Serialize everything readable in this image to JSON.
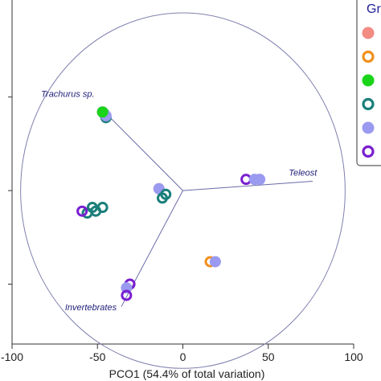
{
  "chart_data": {
    "type": "scatter",
    "title": "",
    "xlabel": "PCO1 (54.4% of total variation)",
    "ylabel": "",
    "xlim": [
      -100,
      100
    ],
    "ylim": [
      -82,
      104
    ],
    "xticks": [
      -100,
      -50,
      0,
      50,
      100
    ],
    "yticks": [
      -50,
      0,
      50
    ],
    "legend": {
      "title": "Gr",
      "placement": "top-right",
      "entries": [
        {
          "color": "#f28b82",
          "marker": "filled"
        },
        {
          "color": "#f0901e",
          "marker": "ring"
        },
        {
          "color": "#19d419",
          "marker": "filled"
        },
        {
          "color": "#1a7f7a",
          "marker": "ring"
        },
        {
          "color": "#9a9af0",
          "marker": "filled"
        },
        {
          "color": "#7a1fd0",
          "marker": "ring"
        }
      ]
    },
    "circle": {
      "center": [
        0,
        0
      ],
      "radius": 95,
      "color": "#8080b0"
    },
    "vectors": [
      {
        "label": "Trachurus sp.",
        "end": [
          -48,
          44
        ],
        "label_anchor": [
          -83,
          50
        ]
      },
      {
        "label": "Teleost",
        "end": [
          76,
          5
        ],
        "label_anchor": [
          62,
          8
        ]
      },
      {
        "label": "Invertebrates",
        "end": [
          -36,
          -62
        ],
        "label_anchor": [
          -69,
          -64
        ]
      }
    ],
    "points": [
      {
        "x": -47,
        "y": 42,
        "color": "#7a1fd0",
        "marker": "ring"
      },
      {
        "x": -46,
        "y": 41,
        "color": "#1a7f7a",
        "marker": "ring"
      },
      {
        "x": -45,
        "y": 39,
        "color": "#1a7f7a",
        "marker": "ring"
      },
      {
        "x": -45,
        "y": 40,
        "color": "#9a9af0",
        "marker": "filled"
      },
      {
        "x": -47,
        "y": 42,
        "color": "#19d419",
        "marker": "filled"
      },
      {
        "x": -53,
        "y": -9,
        "color": "#1a7f7a",
        "marker": "ring"
      },
      {
        "x": -47,
        "y": -9,
        "color": "#1a7f7a",
        "marker": "ring"
      },
      {
        "x": -51,
        "y": -11,
        "color": "#1a7f7a",
        "marker": "ring"
      },
      {
        "x": -56,
        "y": -12,
        "color": "#1a7f7a",
        "marker": "ring"
      },
      {
        "x": -59,
        "y": -11,
        "color": "#7a1fd0",
        "marker": "ring"
      },
      {
        "x": -14,
        "y": 1,
        "color": "#f28b82",
        "marker": "filled"
      },
      {
        "x": -14,
        "y": 1,
        "color": "#9a9af0",
        "marker": "filled"
      },
      {
        "x": -10,
        "y": -2,
        "color": "#1a7f7a",
        "marker": "ring"
      },
      {
        "x": -12,
        "y": -4,
        "color": "#1a7f7a",
        "marker": "ring"
      },
      {
        "x": 37,
        "y": 6,
        "color": "#7a1fd0",
        "marker": "ring"
      },
      {
        "x": 42,
        "y": 6,
        "color": "#9a9af0",
        "marker": "filled"
      },
      {
        "x": 45,
        "y": 6,
        "color": "#9a9af0",
        "marker": "filled"
      },
      {
        "x": 16,
        "y": -38,
        "color": "#f0901e",
        "marker": "ring"
      },
      {
        "x": 19,
        "y": -38,
        "color": "#9a9af0",
        "marker": "filled"
      },
      {
        "x": -31,
        "y": -50,
        "color": "#7a1fd0",
        "marker": "ring"
      },
      {
        "x": -33,
        "y": -52,
        "color": "#9a9af0",
        "marker": "filled"
      },
      {
        "x": -33,
        "y": -56,
        "color": "#7a1fd0",
        "marker": "ring"
      }
    ]
  }
}
